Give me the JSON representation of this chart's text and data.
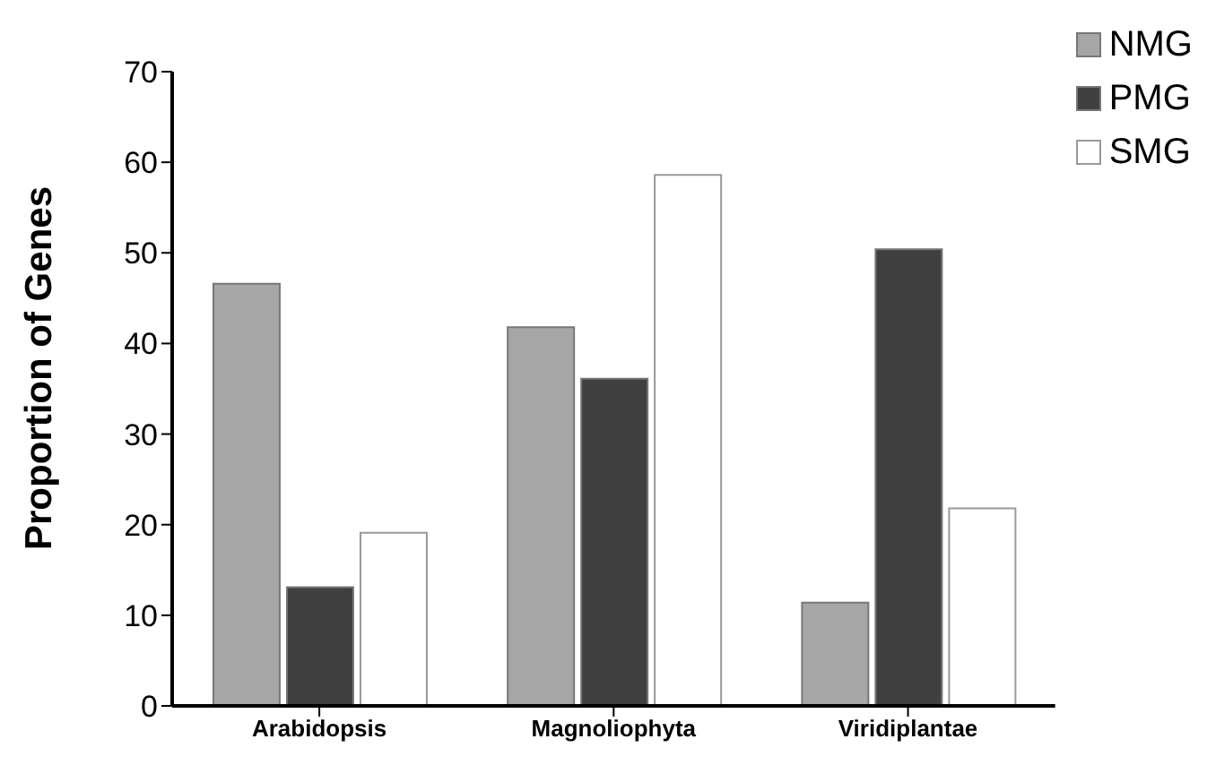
{
  "chart_data": {
    "type": "bar",
    "ylabel": "Proportion of Genes",
    "categories": [
      "Arabidopsis",
      "Magnoliophyta",
      "Viridiplantae"
    ],
    "series": [
      {
        "name": "NMG",
        "color": "#a6a6a6",
        "values": [
          46.6,
          41.8,
          11.4
        ]
      },
      {
        "name": "PMG",
        "color": "#404040",
        "values": [
          13.1,
          36.1,
          50.4
        ]
      },
      {
        "name": "SMG",
        "color": "#ffffff",
        "values": [
          19.1,
          58.6,
          21.8
        ]
      }
    ],
    "ylim": [
      0,
      70
    ],
    "yticks": [
      0,
      10,
      20,
      30,
      40,
      50,
      60,
      70
    ],
    "grid": false,
    "legend": "top right"
  }
}
